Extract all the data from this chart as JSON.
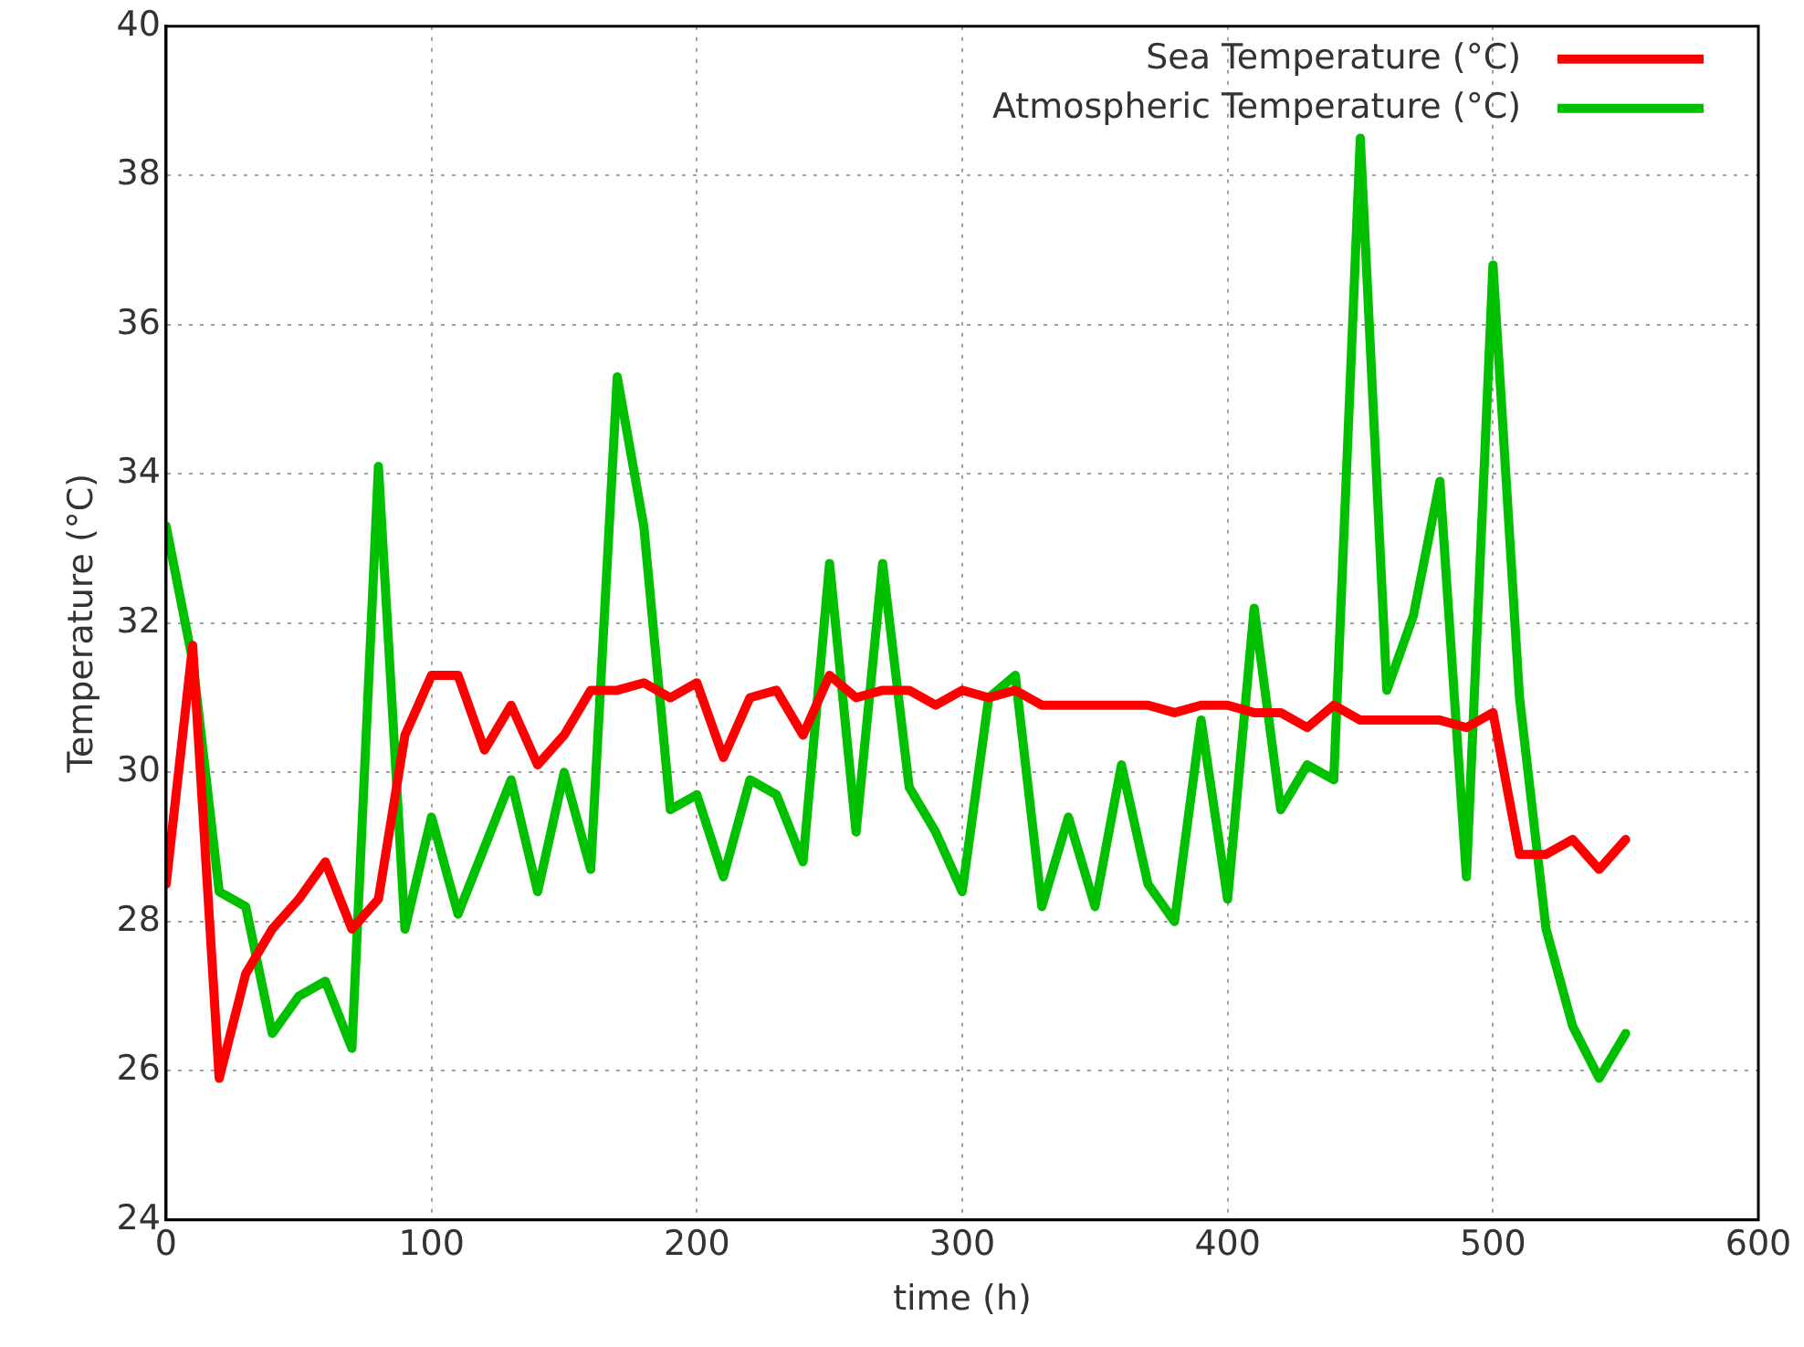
{
  "chart_data": {
    "type": "line",
    "xlabel": "time (h)",
    "ylabel": "Temperature (°C)",
    "x": [
      0,
      10,
      20,
      30,
      40,
      50,
      60,
      70,
      80,
      90,
      100,
      110,
      120,
      130,
      140,
      150,
      160,
      170,
      180,
      190,
      200,
      210,
      220,
      230,
      240,
      250,
      260,
      270,
      280,
      290,
      300,
      310,
      320,
      330,
      340,
      350,
      360,
      370,
      380,
      390,
      400,
      410,
      420,
      430,
      440,
      450,
      460,
      470,
      480,
      490,
      500,
      510,
      520,
      530,
      540,
      550
    ],
    "series": [
      {
        "name": "Sea Temperature (°C)",
        "color": "#ff0000",
        "values": [
          28.5,
          31.7,
          25.9,
          27.3,
          27.9,
          28.3,
          28.8,
          27.9,
          28.3,
          30.5,
          31.3,
          31.3,
          30.3,
          30.9,
          30.1,
          30.5,
          31.1,
          31.1,
          31.2,
          31.0,
          31.2,
          30.2,
          31.0,
          31.1,
          30.5,
          31.3,
          31.0,
          31.1,
          31.1,
          30.9,
          31.1,
          31.0,
          31.1,
          30.9,
          30.9,
          30.9,
          30.9,
          30.9,
          30.8,
          30.9,
          30.9,
          30.8,
          30.8,
          30.6,
          30.9,
          30.7,
          30.7,
          30.7,
          30.7,
          30.6,
          30.8,
          28.9,
          28.9,
          29.1,
          28.7,
          29.1
        ]
      },
      {
        "name": "Atmospheric Temperature (°C)",
        "color": "#00c000",
        "values": [
          33.3,
          31.5,
          28.4,
          28.2,
          26.5,
          27.0,
          27.2,
          26.3,
          34.1,
          27.9,
          29.4,
          28.1,
          29.0,
          29.9,
          28.4,
          30.0,
          28.7,
          35.3,
          33.3,
          29.5,
          29.7,
          28.6,
          29.9,
          29.7,
          28.8,
          32.8,
          29.2,
          32.8,
          29.8,
          29.2,
          28.4,
          31.0,
          31.3,
          28.2,
          29.4,
          28.2,
          30.1,
          28.5,
          28.0,
          30.7,
          28.3,
          32.2,
          29.5,
          30.1,
          29.9,
          38.5,
          31.1,
          32.1,
          33.9,
          28.6,
          36.8,
          31.0,
          27.9,
          26.6,
          25.9,
          26.5
        ]
      }
    ],
    "xlim": [
      0,
      600
    ],
    "xticks": [
      0,
      100,
      200,
      300,
      400,
      500,
      600
    ],
    "ylim": [
      24,
      40
    ],
    "yticks": [
      24,
      26,
      28,
      30,
      32,
      34,
      36,
      38,
      40
    ],
    "grid": true,
    "legend": "top right",
    "marker": "none",
    "line_style": "solid"
  }
}
